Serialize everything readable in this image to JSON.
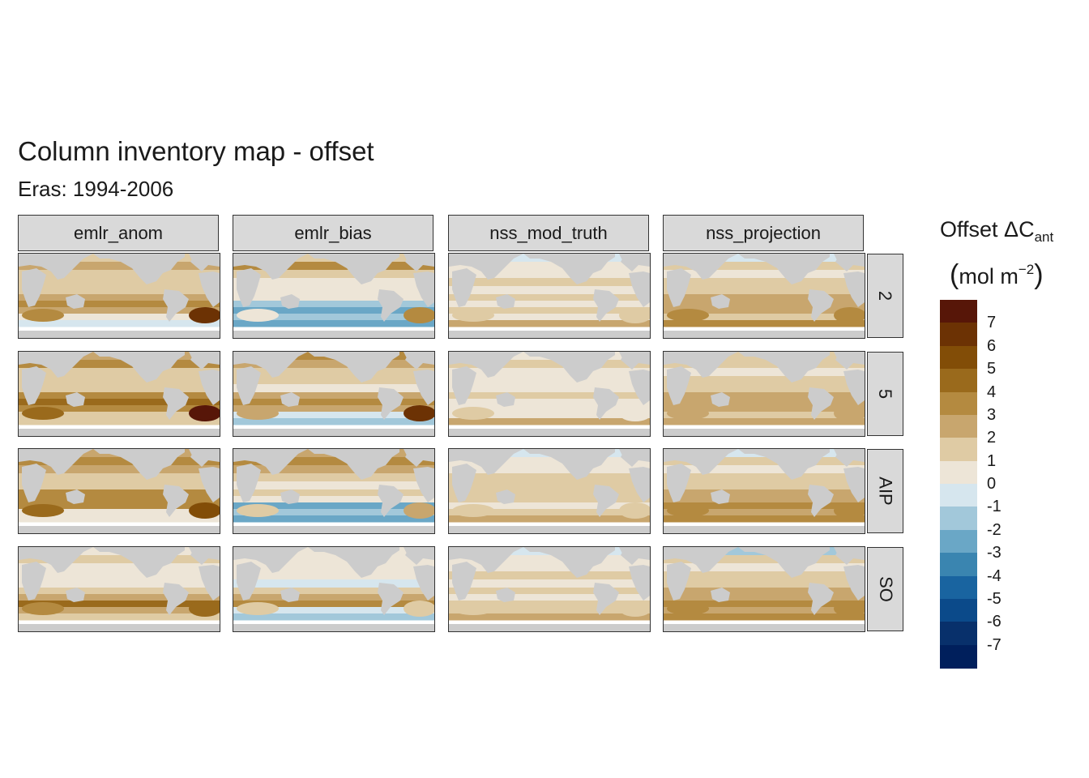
{
  "title": "Column inventory map - offset",
  "subtitle": "Eras: 1994-2006",
  "columns": [
    "emlr_anom",
    "emlr_bias",
    "nss_mod_truth",
    "nss_projection"
  ],
  "rows": [
    "2",
    "5",
    "AIP",
    "SO"
  ],
  "colors": {
    "land": "#cccccc",
    "strip": "#d9d9d9",
    "palette": [
      "#001f5c",
      "#08306b",
      "#0b4a8a",
      "#1964a0",
      "#3a85b0",
      "#6aa7c6",
      "#a2c8da",
      "#d6e6ee",
      "#ede5d7",
      "#dfcba4",
      "#c8a66e",
      "#b48a40",
      "#9a6a1c",
      "#824d07",
      "#6c3204",
      "#571608"
    ]
  },
  "legend": {
    "title": "Offset ΔC",
    "title_subscript": "ant",
    "unit": "mol m",
    "unit_superscript": "−2",
    "open_paren": "(",
    "close_paren": ")",
    "labels": [
      "7",
      "6",
      "5",
      "4",
      "3",
      "2",
      "1",
      "0",
      "-1",
      "-2",
      "-3",
      "-4",
      "-5",
      "-6",
      "-7"
    ]
  },
  "chart_data": {
    "type": "heatmap",
    "facets": {
      "columns": [
        "emlr_anom",
        "emlr_bias",
        "nss_mod_truth",
        "nss_projection"
      ],
      "rows": [
        "2",
        "5",
        "AIP",
        "SO"
      ]
    },
    "variable": "Offset ΔC_ant (mol m^-2)",
    "color_scale_range": [
      -8,
      8
    ],
    "color_breaks": [
      7,
      6,
      5,
      4,
      3,
      2,
      1,
      0,
      -1,
      -2,
      -3,
      -4,
      -5,
      -6,
      -7
    ],
    "panels": [
      {
        "column": "emlr_anom",
        "row": "2",
        "bands": [
          1.5,
          2.5,
          1.5,
          1,
          1.5,
          2.5,
          3.5,
          2.5,
          0,
          -0.5
        ],
        "south_atlantic": 6,
        "south_indian": 3
      },
      {
        "column": "emlr_bias",
        "row": "2",
        "bands": [
          1.5,
          3,
          1.5,
          0.5,
          0.5,
          0,
          -1.5,
          -2.5,
          -1.5,
          -2.5
        ],
        "south_atlantic": 3,
        "south_indian": 0
      },
      {
        "column": "nss_mod_truth",
        "row": "2",
        "bands": [
          -0.5,
          0.5,
          0.5,
          1,
          0.5,
          1,
          0.5,
          1,
          0.5,
          2.5
        ],
        "south_atlantic": 1,
        "south_indian": 1
      },
      {
        "column": "nss_projection",
        "row": "2",
        "bands": [
          -1,
          1,
          0.5,
          1.5,
          1,
          2,
          2.5,
          2,
          1.5,
          3
        ],
        "south_atlantic": 3,
        "south_indian": 3
      },
      {
        "column": "emlr_anom",
        "row": "5",
        "bands": [
          2,
          3,
          1,
          1.5,
          1,
          3,
          4,
          3.5,
          1.5,
          1
        ],
        "south_atlantic": 7,
        "south_indian": 4
      },
      {
        "column": "emlr_bias",
        "row": "5",
        "bands": [
          3,
          2.5,
          1,
          1,
          0.5,
          2.5,
          3,
          2,
          -0.5,
          -2
        ],
        "south_atlantic": 6,
        "south_indian": 2
      },
      {
        "column": "nss_mod_truth",
        "row": "5",
        "bands": [
          0.5,
          1,
          0.5,
          0.5,
          0.5,
          1,
          0.5,
          0,
          0.5,
          2.5
        ],
        "south_atlantic": 0.5,
        "south_indian": 1
      },
      {
        "column": "nss_projection",
        "row": "5",
        "bands": [
          1,
          1,
          0.5,
          1.5,
          1,
          2,
          2.5,
          2,
          1.5,
          2.5
        ],
        "south_atlantic": 2,
        "south_indian": 2.5
      },
      {
        "column": "emlr_anom",
        "row": "AIP",
        "bands": [
          2.5,
          3,
          2,
          1.5,
          1,
          3,
          3.5,
          3,
          0.5,
          0
        ],
        "south_atlantic": 5,
        "south_indian": 4
      },
      {
        "column": "emlr_bias",
        "row": "AIP",
        "bands": [
          2.5,
          3,
          2,
          1,
          0.5,
          1,
          0,
          -2.5,
          -1.5,
          -3
        ],
        "south_atlantic": 2,
        "south_indian": 1
      },
      {
        "column": "nss_mod_truth",
        "row": "AIP",
        "bands": [
          -0.5,
          0.5,
          0.5,
          1,
          1,
          1.5,
          1,
          0.5,
          1,
          2.5
        ],
        "south_atlantic": 1,
        "south_indian": 1.5
      },
      {
        "column": "nss_projection",
        "row": "AIP",
        "bands": [
          -1,
          1,
          0.5,
          1.5,
          1,
          2,
          2.5,
          3,
          2,
          3
        ],
        "south_atlantic": 3,
        "south_indian": 3
      },
      {
        "column": "emlr_anom",
        "row": "SO",
        "bands": [
          0.5,
          1,
          0.5,
          0.5,
          0.5,
          1,
          2,
          4,
          2,
          1.5
        ],
        "south_atlantic": 4,
        "south_indian": 3
      },
      {
        "column": "emlr_bias",
        "row": "SO",
        "bands": [
          0,
          0.5,
          0,
          0,
          -0.5,
          1,
          2,
          3,
          -1,
          -2
        ],
        "south_atlantic": 1,
        "south_indian": 1
      },
      {
        "column": "nss_mod_truth",
        "row": "SO",
        "bands": [
          -1,
          0.5,
          0.5,
          1,
          0.5,
          1,
          0.5,
          1,
          1,
          2.5
        ],
        "south_atlantic": 1,
        "south_indian": 1
      },
      {
        "column": "nss_projection",
        "row": "SO",
        "bands": [
          -1.5,
          1,
          0.5,
          1.5,
          1,
          2,
          2.5,
          3.5,
          2,
          3
        ],
        "south_atlantic": 3,
        "south_indian": 3
      }
    ]
  }
}
